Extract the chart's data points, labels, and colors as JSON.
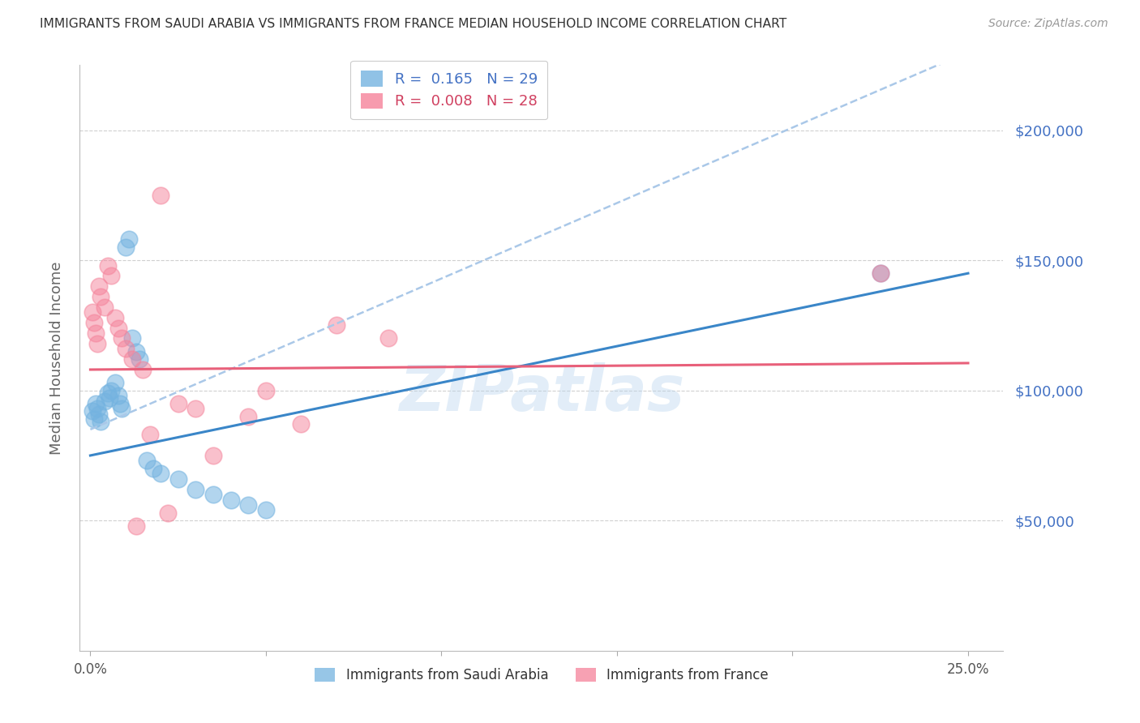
{
  "title": "IMMIGRANTS FROM SAUDI ARABIA VS IMMIGRANTS FROM FRANCE MEDIAN HOUSEHOLD INCOME CORRELATION CHART",
  "source": "Source: ZipAtlas.com",
  "ylabel": "Median Household Income",
  "xlabel_ticks": [
    "0.0%",
    "",
    "",
    "",
    "",
    "25.0%"
  ],
  "xlabel_vals": [
    0.0,
    5.0,
    10.0,
    15.0,
    20.0,
    25.0
  ],
  "ytick_vals": [
    0,
    50000,
    100000,
    150000,
    200000
  ],
  "ytick_labels": [
    "",
    "$50,000",
    "$100,000",
    "$150,000",
    "$200,000"
  ],
  "ylim": [
    0,
    225000
  ],
  "xlim": [
    -0.3,
    26.0
  ],
  "legend_r1": "R =  0.165   N = 29",
  "legend_r2": "R =  0.008   N = 28",
  "r1_color": "#74b3e0",
  "r2_color": "#f5829a",
  "watermark": "ZIPatlas",
  "saudi_x": [
    0.05,
    0.1,
    0.15,
    0.2,
    0.25,
    0.3,
    0.4,
    0.5,
    0.55,
    0.6,
    0.7,
    0.8,
    0.85,
    0.9,
    1.0,
    1.1,
    1.2,
    1.3,
    1.4,
    1.6,
    1.8,
    2.0,
    2.5,
    3.0,
    3.5,
    4.0,
    4.5,
    5.0,
    22.5
  ],
  "saudi_y": [
    92000,
    89000,
    95000,
    93000,
    91000,
    88000,
    96000,
    99000,
    97000,
    100000,
    103000,
    98000,
    95000,
    93000,
    155000,
    158000,
    120000,
    115000,
    112000,
    73000,
    70000,
    68000,
    66000,
    62000,
    60000,
    58000,
    56000,
    54000,
    145000
  ],
  "france_x": [
    0.05,
    0.1,
    0.15,
    0.2,
    0.25,
    0.3,
    0.4,
    0.5,
    0.6,
    0.7,
    0.8,
    0.9,
    1.0,
    1.2,
    1.5,
    2.0,
    2.5,
    3.0,
    3.5,
    5.0,
    7.0,
    8.5,
    4.5,
    6.0,
    1.7,
    2.2,
    1.3,
    22.5
  ],
  "france_y": [
    130000,
    126000,
    122000,
    118000,
    140000,
    136000,
    132000,
    148000,
    144000,
    128000,
    124000,
    120000,
    116000,
    112000,
    108000,
    175000,
    95000,
    93000,
    75000,
    100000,
    125000,
    120000,
    90000,
    87000,
    83000,
    53000,
    48000,
    145000
  ],
  "saudi_trend_x": [
    0.0,
    25.0
  ],
  "saudi_trend_y": [
    75000,
    145000
  ],
  "france_trend_x": [
    0.0,
    25.0
  ],
  "france_trend_y": [
    108000,
    110500
  ],
  "background_color": "#ffffff",
  "grid_color": "#d0d0d0",
  "title_color": "#333333",
  "axis_label_color": "#666666",
  "ytick_color": "#4472c4",
  "xtick_color": "#555555"
}
